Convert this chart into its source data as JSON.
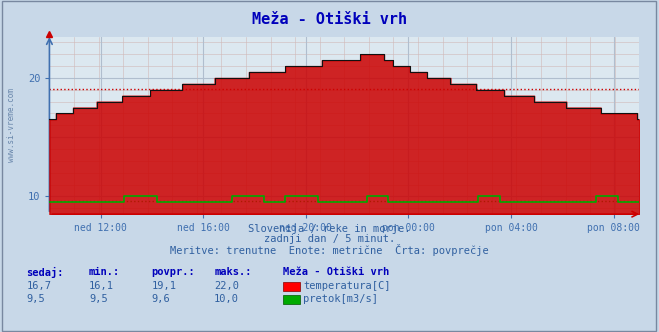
{
  "title": "Meža - Otiški vrh",
  "bg_color": "#c8d8e8",
  "plot_bg_color": "#dce8f0",
  "grid_color": "#b0bece",
  "temp_color": "#cc0000",
  "temp_line_color": "#330000",
  "flow_color": "#00aa00",
  "axis_color": "#4070b0",
  "label_color": "#3060a0",
  "title_color": "#0000bb",
  "text_color": "#3060a0",
  "ylim": [
    8.5,
    23.5
  ],
  "xlabel_ticks": [
    "ned 12:00",
    "ned 16:00",
    "ned 20:00",
    "pon 00:00",
    "pon 04:00",
    "pon 08:00"
  ],
  "avg_temp": 19.1,
  "avg_flow": 9.6,
  "subtitle1": "Slovenija / reke in morje.",
  "subtitle2": "zadnji dan / 5 minut.",
  "subtitle3": "Meritve: trenutne  Enote: metrične  Črta: povprečje",
  "watermark": "www.si-vreme.com",
  "legend_title": "Meža - Otiški vrh",
  "legend_temp_vals": [
    "16,7",
    "16,1",
    "19,1",
    "22,0"
  ],
  "legend_flow_vals": [
    "9,5",
    "9,5",
    "9,6",
    "10,0"
  ],
  "legend_temp_label": "temperatura[C]",
  "legend_flow_label": "pretok[m3/s]"
}
